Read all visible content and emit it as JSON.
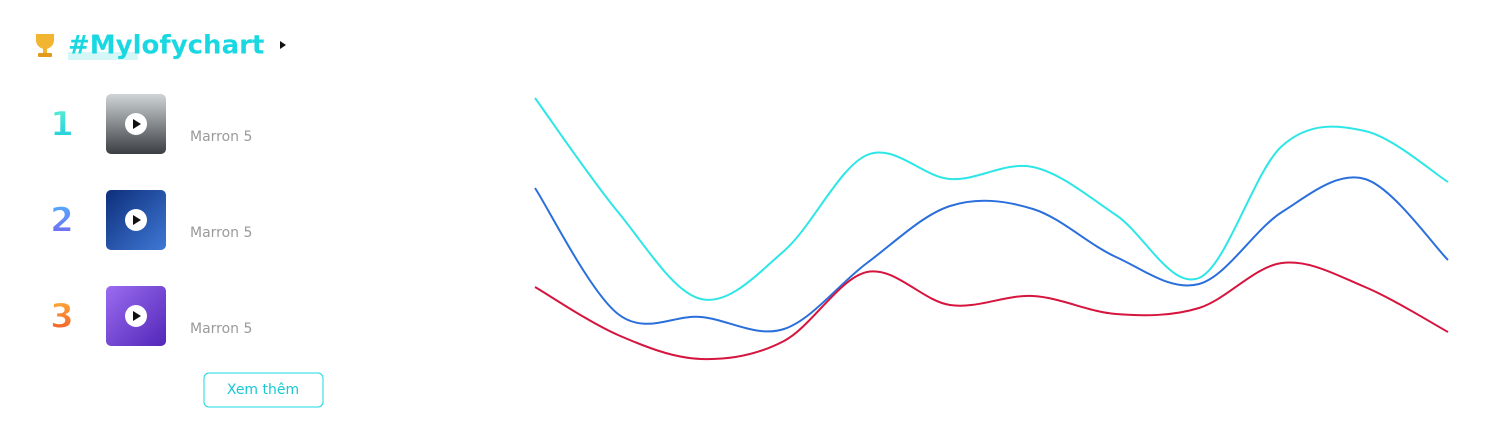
{
  "header": {
    "title": "#Mylofychart"
  },
  "ranking": {
    "items": [
      {
        "rank": 1,
        "artist": "Marron 5"
      },
      {
        "rank": 2,
        "artist": "Marron 5"
      },
      {
        "rank": 3,
        "artist": "Marron 5"
      }
    ]
  },
  "button": {
    "label": "Xem thêm"
  },
  "chart_data": {
    "type": "line",
    "ylim": [
      0,
      100
    ],
    "series": [
      {
        "color": "#2ee6e6",
        "values": [
          94,
          56,
          27,
          43,
          75,
          67,
          71,
          55,
          34,
          78,
          83,
          66
        ]
      },
      {
        "color": "#2a6fdb",
        "values": [
          64,
          22,
          21,
          17,
          39,
          58,
          57,
          41,
          32,
          56,
          67,
          40
        ]
      },
      {
        "color": "#d6153f",
        "values": [
          31,
          15,
          7,
          13,
          36,
          25,
          28,
          22,
          24,
          39,
          31,
          16
        ]
      }
    ]
  }
}
